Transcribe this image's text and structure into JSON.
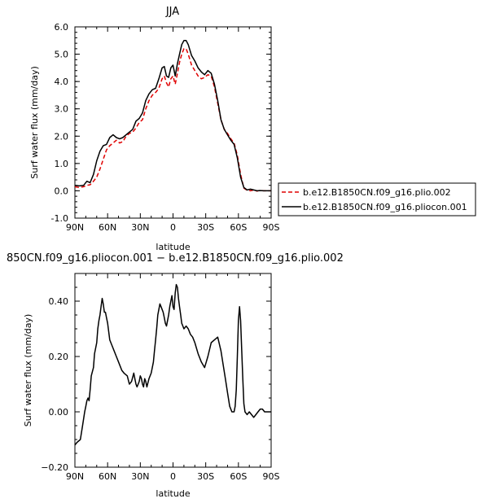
{
  "chart_data": [
    {
      "type": "line",
      "title": "JJA",
      "xlabel": "latitude",
      "ylabel": "Surf water flux (mm/day)",
      "xlim": [
        90,
        -90
      ],
      "ylim": [
        -1.0,
        6.0
      ],
      "x_ticks": [
        90,
        60,
        30,
        0,
        -30,
        -60,
        -90
      ],
      "x_tick_labels": [
        "90N",
        "60N",
        "30N",
        "0",
        "30S",
        "60S",
        "90S"
      ],
      "y_ticks": [
        -1.0,
        0.0,
        1.0,
        2.0,
        3.0,
        4.0,
        5.0,
        6.0
      ],
      "y_tick_labels": [
        "-1.0",
        "0.0",
        "1.0",
        "2.0",
        "3.0",
        "4.0",
        "5.0",
        "6.0"
      ],
      "legend_position": "right",
      "series": [
        {
          "name": "b.e12.B1850CN.f09_g16.plio.002",
          "color": "#e00000",
          "dash": "dashed",
          "x": [
            90,
            86,
            82,
            79,
            76,
            73,
            70,
            67,
            64,
            61,
            58,
            55,
            52,
            49,
            46,
            43,
            40,
            37,
            34,
            31,
            28,
            25,
            22,
            19,
            16,
            13,
            10,
            8,
            6,
            4,
            2,
            0,
            -2,
            -4,
            -6,
            -8,
            -10,
            -12,
            -14,
            -17,
            -20,
            -23,
            -26,
            -29,
            -32,
            -35,
            -38,
            -41,
            -44,
            -47,
            -50,
            -53,
            -56,
            -59,
            -62,
            -65,
            -68,
            -71,
            -74,
            -77,
            -80,
            -83,
            -86,
            -90
          ],
          "y": [
            0.15,
            0.12,
            0.15,
            0.2,
            0.22,
            0.35,
            0.5,
            0.8,
            1.15,
            1.5,
            1.65,
            1.75,
            1.85,
            1.75,
            1.8,
            2.0,
            2.1,
            2.15,
            2.3,
            2.5,
            2.6,
            3.0,
            3.3,
            3.5,
            3.6,
            3.75,
            4.1,
            4.2,
            3.95,
            3.8,
            4.1,
            4.2,
            3.9,
            4.3,
            4.7,
            5.0,
            5.2,
            5.2,
            5.0,
            4.6,
            4.4,
            4.2,
            4.1,
            4.15,
            4.25,
            4.2,
            3.8,
            3.2,
            2.6,
            2.25,
            2.1,
            1.9,
            1.75,
            1.3,
            0.6,
            0.1,
            0.02,
            0.0,
            0.03,
            -0.01,
            0.02,
            0.0,
            0.0,
            0.0
          ]
        },
        {
          "name": "b.e12.B1850CN.f09_g16.pliocon.001",
          "color": "#000000",
          "dash": "solid",
          "x": [
            90,
            86,
            82,
            79,
            76,
            73,
            70,
            67,
            64,
            61,
            58,
            55,
            52,
            49,
            46,
            43,
            40,
            37,
            34,
            31,
            28,
            25,
            22,
            19,
            16,
            13,
            10,
            8,
            6,
            4,
            2,
            0,
            -2,
            -4,
            -6,
            -8,
            -10,
            -12,
            -14,
            -17,
            -20,
            -23,
            -26,
            -29,
            -32,
            -35,
            -38,
            -41,
            -44,
            -47,
            -50,
            -53,
            -56,
            -59,
            -62,
            -65,
            -68,
            -71,
            -74,
            -77,
            -80,
            -83,
            -86,
            -90
          ],
          "y": [
            0.2,
            0.18,
            0.2,
            0.35,
            0.3,
            0.6,
            1.1,
            1.45,
            1.65,
            1.7,
            1.95,
            2.05,
            1.95,
            1.9,
            1.95,
            2.05,
            2.15,
            2.25,
            2.55,
            2.65,
            2.85,
            3.3,
            3.55,
            3.7,
            3.75,
            4.1,
            4.5,
            4.55,
            4.2,
            4.15,
            4.5,
            4.6,
            4.2,
            4.65,
            5.0,
            5.35,
            5.5,
            5.5,
            5.35,
            4.95,
            4.75,
            4.5,
            4.35,
            4.25,
            4.4,
            4.3,
            3.9,
            3.3,
            2.6,
            2.25,
            2.05,
            1.85,
            1.7,
            1.2,
            0.5,
            0.12,
            0.03,
            0.06,
            0.03,
            0.0,
            0.01,
            0.0,
            0.0,
            0.0
          ]
        }
      ]
    },
    {
      "type": "line",
      "title": "850CN.f09_g16.pliocon.001 − b.e12.B1850CN.f09_g16.plio.002",
      "xlabel": "latitude",
      "ylabel": "Surf water flux (mm/day)",
      "xlim": [
        90,
        -90
      ],
      "ylim": [
        -0.2,
        0.5
      ],
      "x_ticks": [
        90,
        60,
        30,
        0,
        -30,
        -60,
        -90
      ],
      "x_tick_labels": [
        "90N",
        "60N",
        "30N",
        "0",
        "30S",
        "60S",
        "90S"
      ],
      "y_ticks": [
        -0.2,
        0.0,
        0.2,
        0.4
      ],
      "y_tick_labels": [
        "−0.20",
        "0.00",
        "0.20",
        "0.40"
      ],
      "series": [
        {
          "color": "#000000",
          "x": [
            90,
            88,
            85,
            83,
            81,
            80,
            79,
            78,
            77,
            76,
            75,
            73,
            72,
            70,
            69,
            68,
            67,
            66,
            65,
            64,
            63,
            62,
            61,
            60,
            58,
            56,
            54,
            52,
            50,
            47,
            45,
            42,
            40,
            38,
            36,
            35,
            34,
            33,
            32,
            31,
            30,
            29,
            28,
            27,
            26,
            25,
            24,
            22,
            20,
            18,
            17,
            16,
            15,
            14,
            13,
            12,
            11,
            10,
            9,
            8,
            7,
            6,
            5,
            4,
            3,
            2,
            1,
            0,
            -1,
            -2,
            -3,
            -4,
            -5,
            -6,
            -7,
            -8,
            -9,
            -10,
            -12,
            -14,
            -16,
            -18,
            -20,
            -23,
            -26,
            -29,
            -32,
            -35,
            -38,
            -41,
            -44,
            -46,
            -48,
            -50,
            -52,
            -54,
            -56,
            -57,
            -58,
            -59,
            -60,
            -61,
            -62,
            -63,
            -64,
            -65,
            -66,
            -68,
            -70,
            -72,
            -74,
            -76,
            -78,
            -80,
            -82,
            -84,
            -86,
            -90
          ],
          "y": [
            -0.12,
            -0.11,
            -0.1,
            -0.05,
            0.0,
            0.02,
            0.04,
            0.05,
            0.04,
            0.08,
            0.13,
            0.16,
            0.21,
            0.25,
            0.3,
            0.33,
            0.35,
            0.38,
            0.41,
            0.39,
            0.36,
            0.36,
            0.34,
            0.32,
            0.26,
            0.24,
            0.22,
            0.2,
            0.18,
            0.15,
            0.14,
            0.13,
            0.1,
            0.11,
            0.14,
            0.12,
            0.1,
            0.09,
            0.1,
            0.11,
            0.13,
            0.12,
            0.1,
            0.09,
            0.12,
            0.11,
            0.09,
            0.12,
            0.14,
            0.18,
            0.22,
            0.26,
            0.3,
            0.35,
            0.37,
            0.39,
            0.38,
            0.37,
            0.36,
            0.34,
            0.32,
            0.31,
            0.33,
            0.35,
            0.38,
            0.4,
            0.42,
            0.38,
            0.37,
            0.43,
            0.46,
            0.45,
            0.41,
            0.38,
            0.35,
            0.32,
            0.31,
            0.3,
            0.31,
            0.3,
            0.28,
            0.27,
            0.25,
            0.21,
            0.18,
            0.16,
            0.2,
            0.25,
            0.26,
            0.27,
            0.22,
            0.17,
            0.12,
            0.07,
            0.02,
            0.0,
            0.0,
            0.02,
            0.08,
            0.2,
            0.33,
            0.38,
            0.33,
            0.22,
            0.12,
            0.03,
            0.0,
            -0.01,
            0.0,
            -0.01,
            -0.02,
            -0.01,
            0.0,
            0.01,
            0.01,
            0.0,
            0.0,
            0.0
          ]
        }
      ]
    }
  ]
}
